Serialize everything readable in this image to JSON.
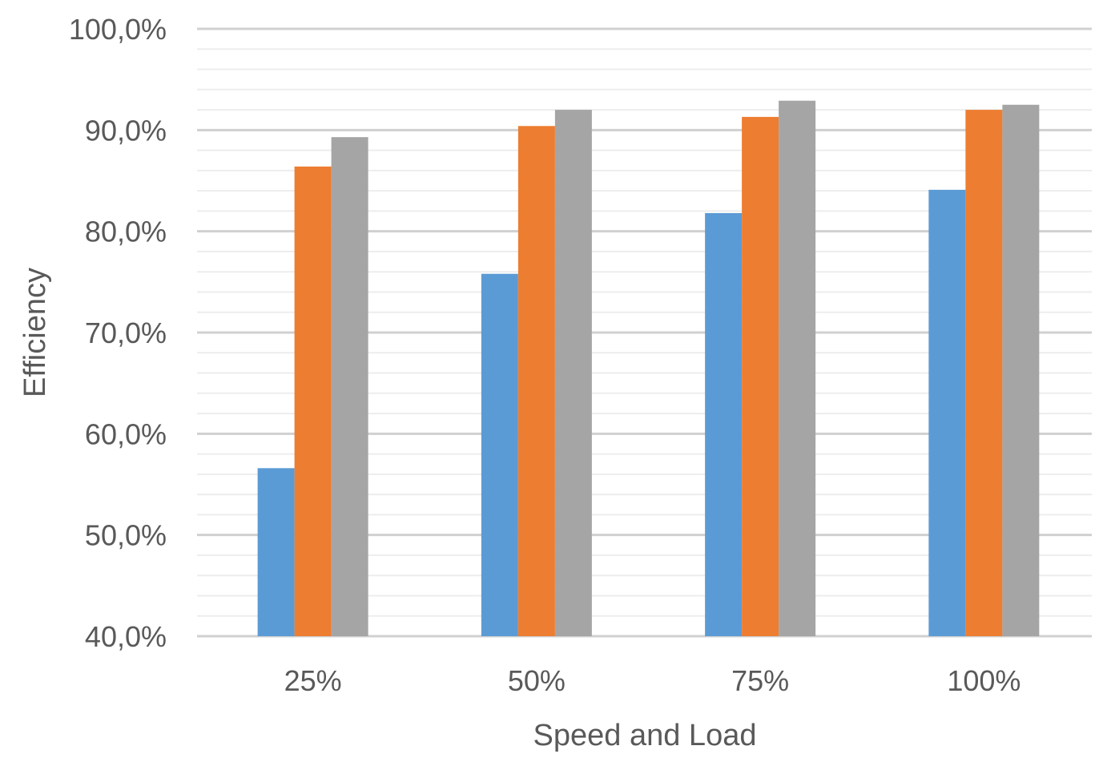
{
  "chart_data": {
    "type": "bar",
    "title": "",
    "xlabel": "Speed and Load",
    "ylabel": "Efficiency",
    "categories": [
      "25%",
      "50%",
      "75%",
      "100%"
    ],
    "series": [
      {
        "values": [
          56.6,
          75.8,
          81.8,
          84.1
        ],
        "color": "#5B9BD5"
      },
      {
        "values": [
          86.4,
          90.4,
          91.3,
          92.0
        ],
        "color": "#ED7D31"
      },
      {
        "values": [
          89.3,
          92.0,
          92.9,
          92.5
        ],
        "color": "#A5A5A5"
      }
    ],
    "ylim": [
      40,
      100
    ],
    "y_ticks": [
      "40,0%",
      "50,0%",
      "60,0%",
      "70,0%",
      "80,0%",
      "90,0%",
      "100,0%"
    ],
    "y_major_step": 10,
    "y_minor_step": 2,
    "grid": true,
    "legend": "none"
  }
}
